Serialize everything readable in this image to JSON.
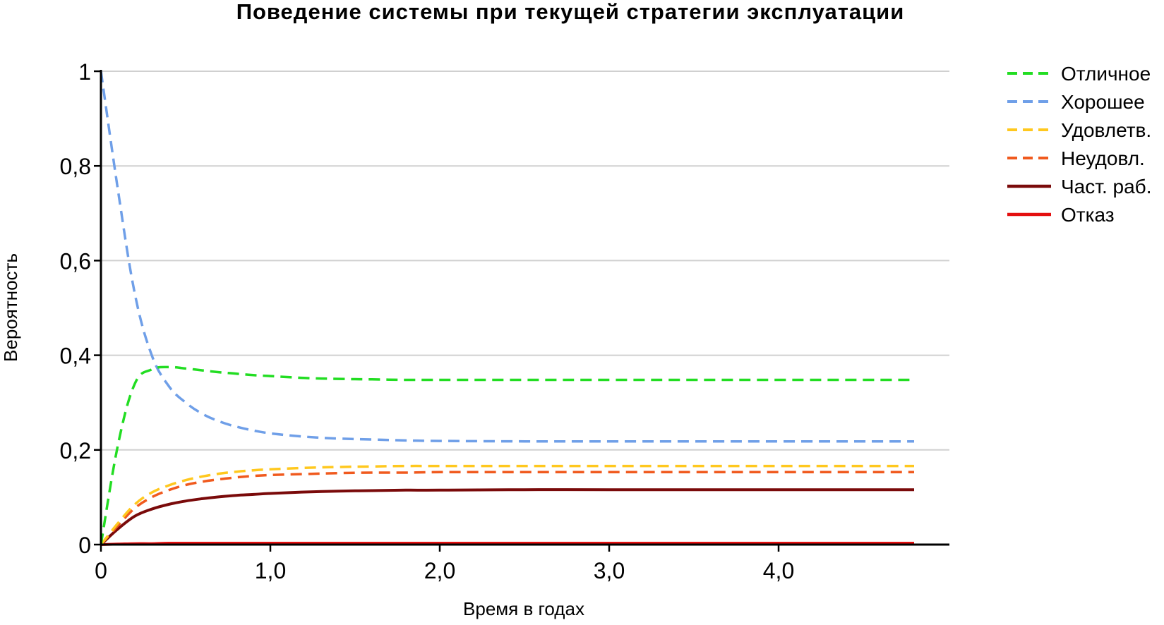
{
  "chart_data": {
    "type": "line",
    "title": "Поведение системы при текущей стратегии эксплуатации",
    "xlabel": "Время в годах",
    "ylabel": "Вероятность",
    "xlim": [
      0,
      5.0
    ],
    "ylim": [
      0,
      1
    ],
    "x_ticks": [
      {
        "value": 0,
        "label": "0"
      },
      {
        "value": 1,
        "label": "1,0"
      },
      {
        "value": 2,
        "label": "2,0"
      },
      {
        "value": 3,
        "label": "3,0"
      },
      {
        "value": 4,
        "label": "4,0"
      }
    ],
    "y_ticks": [
      {
        "value": 0,
        "label": "0"
      },
      {
        "value": 0.2,
        "label": "0,2"
      },
      {
        "value": 0.4,
        "label": "0,4"
      },
      {
        "value": 0.6,
        "label": "0,6"
      },
      {
        "value": 0.8,
        "label": "0,8"
      },
      {
        "value": 1,
        "label": "1"
      }
    ],
    "grid": "horizontal",
    "legend_position": "right",
    "x": [
      0,
      0.1,
      0.2,
      0.3,
      0.4,
      0.5,
      0.6,
      0.7,
      0.8,
      0.9,
      1.0,
      1.2,
      1.4,
      1.6,
      1.8,
      2.0,
      2.5,
      3.0,
      3.5,
      4.0,
      4.5,
      4.8
    ],
    "series": [
      {
        "name": "Отличное",
        "color": "#22dd22",
        "dash": true,
        "values": [
          0,
          0.21,
          0.34,
          0.37,
          0.375,
          0.372,
          0.368,
          0.364,
          0.361,
          0.358,
          0.356,
          0.352,
          0.35,
          0.349,
          0.348,
          0.348,
          0.348,
          0.348,
          0.348,
          0.348,
          0.348,
          0.348
        ]
      },
      {
        "name": "Хорошее",
        "color": "#6f9fe8",
        "dash": true,
        "values": [
          1.0,
          0.75,
          0.53,
          0.4,
          0.335,
          0.3,
          0.276,
          0.26,
          0.249,
          0.241,
          0.235,
          0.228,
          0.224,
          0.222,
          0.22,
          0.219,
          0.218,
          0.218,
          0.218,
          0.218,
          0.218,
          0.218
        ]
      },
      {
        "name": "Удовлетв.",
        "color": "#ffc81e",
        "dash": true,
        "values": [
          0,
          0.045,
          0.085,
          0.11,
          0.125,
          0.136,
          0.144,
          0.15,
          0.154,
          0.157,
          0.159,
          0.162,
          0.164,
          0.165,
          0.166,
          0.166,
          0.166,
          0.166,
          0.166,
          0.166,
          0.166,
          0.166
        ]
      },
      {
        "name": "Неудовл.",
        "color": "#f05a1e",
        "dash": true,
        "values": [
          0,
          0.04,
          0.077,
          0.1,
          0.115,
          0.126,
          0.133,
          0.138,
          0.142,
          0.145,
          0.147,
          0.149,
          0.151,
          0.152,
          0.152,
          0.153,
          0.153,
          0.153,
          0.153,
          0.153,
          0.153,
          0.153
        ]
      },
      {
        "name": "Част. раб.",
        "color": "#7a0a0a",
        "dash": false,
        "values": [
          0,
          0.033,
          0.06,
          0.075,
          0.085,
          0.092,
          0.097,
          0.101,
          0.104,
          0.106,
          0.108,
          0.111,
          0.113,
          0.114,
          0.115,
          0.115,
          0.116,
          0.116,
          0.116,
          0.116,
          0.116,
          0.116
        ]
      },
      {
        "name": "Отказ",
        "color": "#e41010",
        "dash": false,
        "values": [
          0,
          0.001,
          0.002,
          0.002,
          0.003,
          0.003,
          0.003,
          0.003,
          0.003,
          0.003,
          0.003,
          0.003,
          0.003,
          0.003,
          0.003,
          0.003,
          0.003,
          0.003,
          0.003,
          0.003,
          0.003,
          0.003
        ]
      }
    ]
  }
}
